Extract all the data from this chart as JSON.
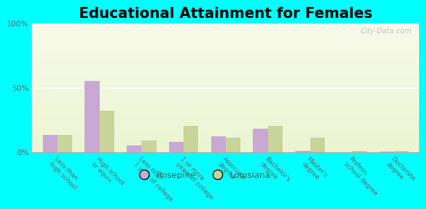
{
  "title": "Educational Attainment for Females",
  "categories": [
    "Less than\nhigh school",
    "High school\nor equiv.",
    "Less than\n1 year of college",
    "1 or more\nyears of college",
    "Associate\ndegree",
    "Bachelor's\ndegree",
    "Master's\ndegree",
    "Profess.\nschool degree",
    "Doctorate\ndegree"
  ],
  "rosepine": [
    13,
    55,
    5,
    8,
    12,
    18,
    1,
    0,
    0.5
  ],
  "louisiana": [
    13,
    32,
    9,
    20,
    11,
    20,
    11,
    1,
    1
  ],
  "rosepine_color": "#c9a8d4",
  "louisiana_color": "#c8d49a",
  "ylim": [
    0,
    100
  ],
  "yticks": [
    0,
    50,
    100
  ],
  "ytick_labels": [
    "0%",
    "50%",
    "100%"
  ],
  "outer_bg": "#00ffff",
  "watermark": "City-Data.com",
  "legend_rosepine": "Rosepine",
  "legend_louisiana": "Louisiana",
  "title_fontsize": 15,
  "bar_width": 0.35
}
